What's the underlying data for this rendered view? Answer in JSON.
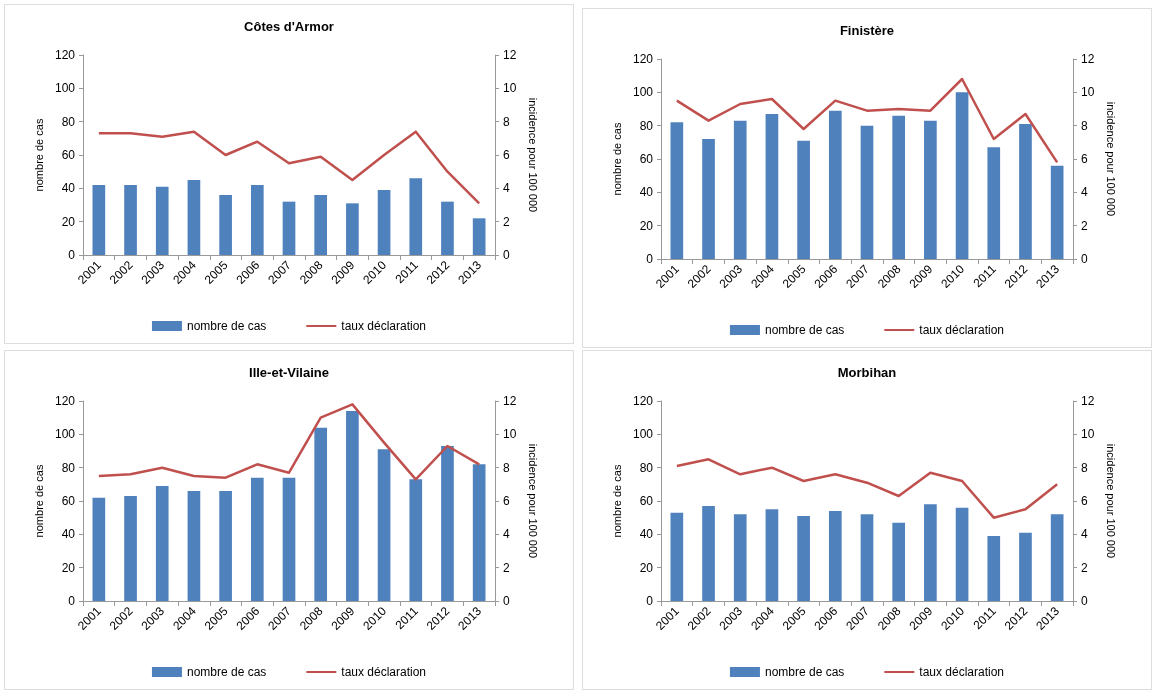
{
  "chart_data": [
    {
      "type": "bar",
      "title": "Côtes d'Armor",
      "ylabel": "nombre de cas",
      "y2label": "incidence pour 100 000",
      "categories": [
        "2001",
        "2002",
        "2003",
        "2004",
        "2005",
        "2006",
        "2007",
        "2008",
        "2009",
        "2010",
        "2011",
        "2012",
        "2013"
      ],
      "ylim": [
        0,
        120
      ],
      "yticks": [
        0,
        20,
        40,
        60,
        80,
        100,
        120
      ],
      "y2lim": [
        0,
        12
      ],
      "y2ticks": [
        0,
        2,
        4,
        6,
        8,
        10,
        12
      ],
      "grid": false,
      "legend": "bottom",
      "series": [
        {
          "name": "nombre de cas",
          "color": "#4f81bd",
          "values": [
            42,
            42,
            41,
            45,
            36,
            42,
            32,
            36,
            31,
            39,
            46,
            32,
            22
          ]
        },
        {
          "type": "line",
          "name": "taux déclaration",
          "color": "#c0504d",
          "axis": "y2",
          "marker": "none",
          "values": [
            7.3,
            7.3,
            7.1,
            7.4,
            6.0,
            6.8,
            5.5,
            5.9,
            4.5,
            6.0,
            7.4,
            5.0,
            3.1
          ]
        }
      ]
    },
    {
      "type": "bar",
      "title": "Finistère",
      "ylabel": "nombre de cas",
      "y2label": "incidence pour 100 000",
      "categories": [
        "2001",
        "2002",
        "2003",
        "2004",
        "2005",
        "2006",
        "2007",
        "2008",
        "2009",
        "2010",
        "2011",
        "2012",
        "2013"
      ],
      "ylim": [
        0,
        120
      ],
      "yticks": [
        0,
        20,
        40,
        60,
        80,
        100,
        120
      ],
      "y2lim": [
        0,
        12
      ],
      "y2ticks": [
        0,
        2,
        4,
        6,
        8,
        10,
        12
      ],
      "grid": false,
      "legend": "bottom",
      "series": [
        {
          "name": "nombre de cas",
          "color": "#4f81bd",
          "values": [
            82,
            72,
            83,
            87,
            71,
            89,
            80,
            86,
            83,
            100,
            67,
            81,
            56
          ]
        },
        {
          "type": "line",
          "name": "taux déclaration",
          "color": "#c0504d",
          "axis": "y2",
          "marker": "none",
          "values": [
            9.5,
            8.3,
            9.3,
            9.6,
            7.8,
            9.5,
            8.9,
            9.0,
            8.9,
            10.8,
            7.2,
            8.7,
            5.8
          ]
        }
      ]
    },
    {
      "type": "bar",
      "title": "Ille-et-Vilaine",
      "ylabel": "nombre de cas",
      "y2label": "incidence pour 100 000",
      "categories": [
        "2001",
        "2002",
        "2003",
        "2004",
        "2005",
        "2006",
        "2007",
        "2008",
        "2009",
        "2010",
        "2011",
        "2012",
        "2013"
      ],
      "ylim": [
        0,
        120
      ],
      "yticks": [
        0,
        20,
        40,
        60,
        80,
        100,
        120
      ],
      "y2lim": [
        0,
        12
      ],
      "y2ticks": [
        0,
        2,
        4,
        6,
        8,
        10,
        12
      ],
      "grid": false,
      "legend": "bottom",
      "series": [
        {
          "name": "nombre de cas",
          "color": "#4f81bd",
          "values": [
            62,
            63,
            69,
            66,
            66,
            74,
            74,
            104,
            114,
            91,
            73,
            93,
            82
          ]
        },
        {
          "type": "line",
          "name": "taux déclaration",
          "color": "#c0504d",
          "axis": "y2",
          "marker": "none",
          "values": [
            7.5,
            7.6,
            8.0,
            7.5,
            7.4,
            8.2,
            7.7,
            11.0,
            11.8,
            9.5,
            7.3,
            9.3,
            8.2
          ]
        }
      ]
    },
    {
      "type": "bar",
      "title": "Morbihan",
      "ylabel": "nombre de cas",
      "y2label": "incidence pour 100 000",
      "categories": [
        "2001",
        "2002",
        "2003",
        "2004",
        "2005",
        "2006",
        "2007",
        "2008",
        "2009",
        "2010",
        "2011",
        "2012",
        "2013"
      ],
      "ylim": [
        0,
        120
      ],
      "yticks": [
        0,
        20,
        40,
        60,
        80,
        100,
        120
      ],
      "y2lim": [
        0,
        12
      ],
      "y2ticks": [
        0,
        2,
        4,
        6,
        8,
        10,
        12
      ],
      "grid": false,
      "legend": "bottom",
      "series": [
        {
          "name": "nombre de cas",
          "color": "#4f81bd",
          "values": [
            53,
            57,
            52,
            55,
            51,
            54,
            52,
            47,
            58,
            56,
            39,
            41,
            52
          ]
        },
        {
          "type": "line",
          "name": "taux déclaration",
          "color": "#c0504d",
          "axis": "y2",
          "marker": "none",
          "values": [
            8.1,
            8.5,
            7.6,
            8.0,
            7.2,
            7.6,
            7.1,
            6.3,
            7.7,
            7.2,
            5.0,
            5.5,
            7.0
          ]
        }
      ]
    }
  ]
}
